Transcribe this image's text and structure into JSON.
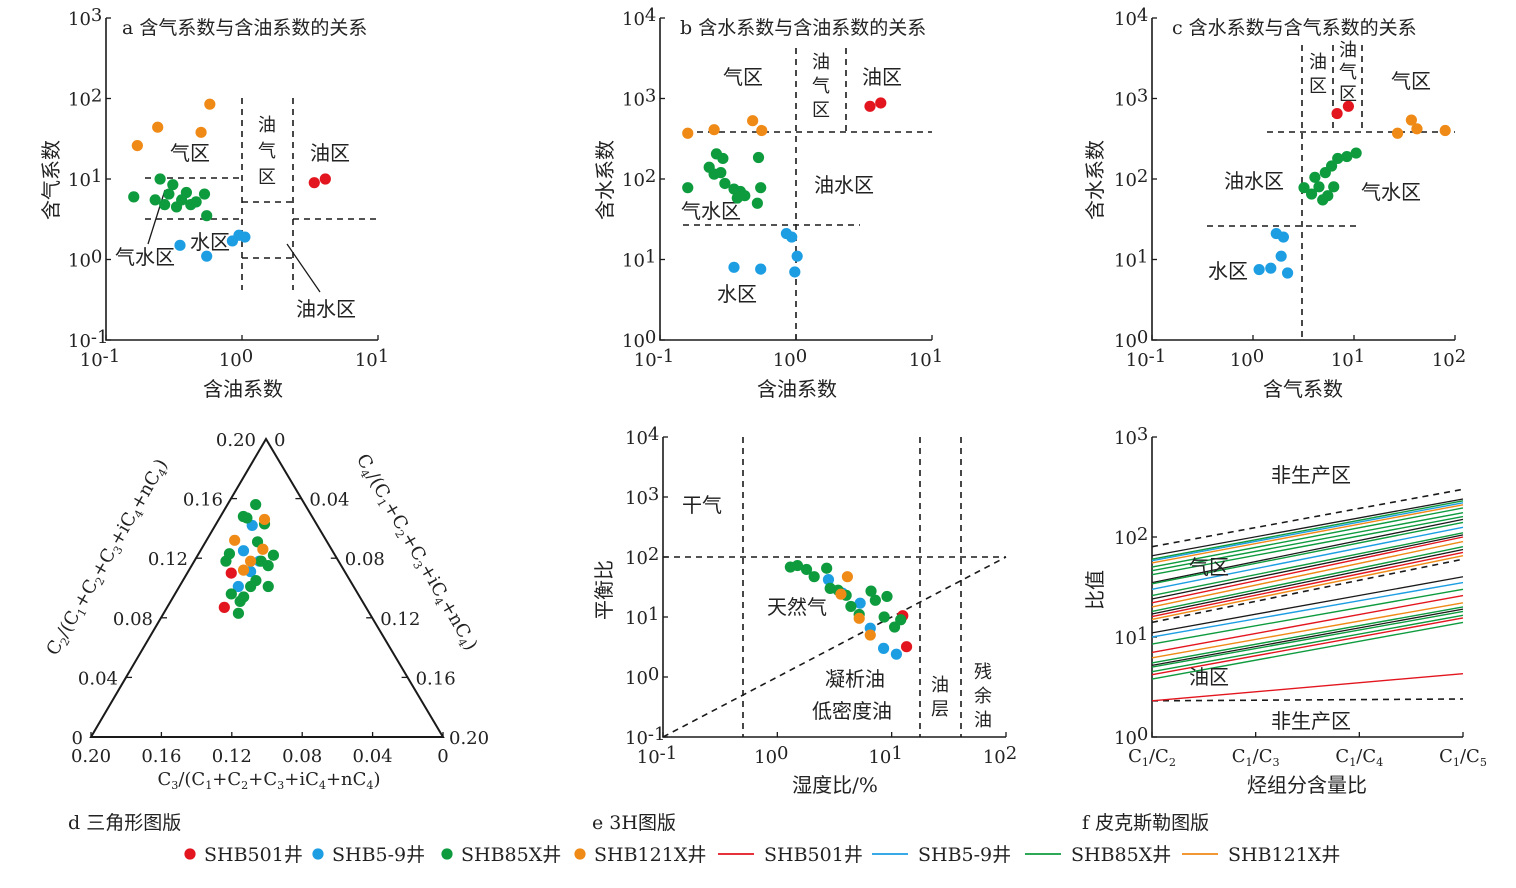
{
  "colors": {
    "SHB501": "#e3161f",
    "SHB5-9": "#1d9ee3",
    "SHB85X": "#0e9b3e",
    "SHB121X": "#ef8a17",
    "dark": "#1a1a1a"
  },
  "legend": [
    {
      "kind": "dot",
      "well": "SHB501",
      "label": "SHB501井"
    },
    {
      "kind": "dot",
      "well": "SHB5-9",
      "label": "SHB5-9井"
    },
    {
      "kind": "dot",
      "well": "SHB85X",
      "label": "SHB85X井"
    },
    {
      "kind": "dot",
      "well": "SHB121X",
      "label": "SHB121X井"
    },
    {
      "kind": "line",
      "well": "SHB501",
      "label": "SHB501井"
    },
    {
      "kind": "line",
      "well": "SHB5-9",
      "label": "SHB5-9井"
    },
    {
      "kind": "line",
      "well": "SHB85X",
      "label": "SHB85X井"
    },
    {
      "kind": "line",
      "well": "SHB121X",
      "label": "SHB121X井"
    }
  ],
  "captions": {
    "d": "d 三角形图版",
    "e": "e 3H图版",
    "f": "f 皮克斯勒图版"
  },
  "chart_data": [
    {
      "id": "a",
      "type": "scatter",
      "title": "a 含气系数与含油系数的关系",
      "xlabel": "含油系数",
      "ylabel": "含气系数",
      "xscale": "log",
      "yscale": "log",
      "xlim": [
        0.1,
        10
      ],
      "ylim": [
        0.1,
        1000
      ],
      "regions": [
        "气区",
        "油气区",
        "油区",
        "气水区",
        "水区",
        "油水区"
      ],
      "series": [
        {
          "well": "SHB501",
          "points": [
            [
              3.4,
              9
            ],
            [
              4.1,
              10
            ]
          ]
        },
        {
          "well": "SHB5-9",
          "points": [
            [
              0.35,
              1.5
            ],
            [
              0.55,
              1.1
            ],
            [
              0.85,
              1.7
            ],
            [
              0.95,
              2.0
            ],
            [
              1.05,
              1.9
            ]
          ]
        },
        {
          "well": "SHB85X",
          "points": [
            [
              0.16,
              6
            ],
            [
              0.23,
              5.5
            ],
            [
              0.25,
              10
            ],
            [
              0.27,
              4.8
            ],
            [
              0.29,
              6.5
            ],
            [
              0.31,
              8.5
            ],
            [
              0.33,
              4.5
            ],
            [
              0.36,
              5.5
            ],
            [
              0.39,
              6.8
            ],
            [
              0.42,
              4.8
            ],
            [
              0.46,
              5.2
            ],
            [
              0.53,
              6.5
            ],
            [
              0.55,
              3.5
            ]
          ]
        },
        {
          "well": "SHB121X",
          "points": [
            [
              0.17,
              26
            ],
            [
              0.24,
              44
            ],
            [
              0.5,
              38
            ],
            [
              0.58,
              85
            ]
          ]
        }
      ]
    },
    {
      "id": "b",
      "type": "scatter",
      "title": "b 含水系数与含油系数的关系",
      "xlabel": "含油系数",
      "ylabel": "含水系数",
      "xscale": "log",
      "yscale": "log",
      "xlim": [
        0.1,
        10
      ],
      "ylim": [
        1,
        10000
      ],
      "regions": [
        "气区",
        "油气区",
        "油区",
        "油水区",
        "气水区",
        "水区"
      ],
      "series": [
        {
          "well": "SHB501",
          "points": [
            [
              3.5,
              800
            ],
            [
              4.2,
              880
            ]
          ]
        },
        {
          "well": "SHB5-9",
          "points": [
            [
              0.35,
              8
            ],
            [
              0.55,
              7.6
            ],
            [
              0.85,
              21
            ],
            [
              0.93,
              19
            ],
            [
              0.98,
              7
            ],
            [
              1.02,
              11
            ]
          ]
        },
        {
          "well": "SHB85X",
          "points": [
            [
              0.16,
              78
            ],
            [
              0.23,
              140
            ],
            [
              0.25,
              115
            ],
            [
              0.26,
              205
            ],
            [
              0.28,
              120
            ],
            [
              0.29,
              180
            ],
            [
              0.3,
              88
            ],
            [
              0.35,
              75
            ],
            [
              0.37,
              58
            ],
            [
              0.39,
              70
            ],
            [
              0.42,
              62
            ],
            [
              0.52,
              50
            ],
            [
              0.53,
              185
            ],
            [
              0.55,
              78
            ]
          ]
        },
        {
          "well": "SHB121X",
          "points": [
            [
              0.16,
              370
            ],
            [
              0.25,
              410
            ],
            [
              0.48,
              530
            ],
            [
              0.56,
              400
            ]
          ]
        }
      ]
    },
    {
      "id": "c",
      "type": "scatter",
      "title": "c 含水系数与含气系数的关系",
      "xlabel": "含气系数",
      "ylabel": "含水系数",
      "xscale": "log",
      "yscale": "log",
      "xlim": [
        0.1,
        100
      ],
      "ylim": [
        1,
        10000
      ],
      "regions": [
        "油区",
        "油气区",
        "气区",
        "油水区",
        "气水区",
        "水区"
      ],
      "series": [
        {
          "well": "SHB501",
          "points": [
            [
              6.8,
              650
            ],
            [
              8.8,
              800
            ]
          ]
        },
        {
          "well": "SHB5-9",
          "points": [
            [
              1.15,
              7.5
            ],
            [
              1.5,
              7.8
            ],
            [
              1.7,
              21
            ],
            [
              1.9,
              11
            ],
            [
              2.0,
              19
            ],
            [
              2.2,
              6.8
            ]
          ]
        },
        {
          "well": "SHB85X",
          "points": [
            [
              3.2,
              78
            ],
            [
              3.8,
              65
            ],
            [
              4.1,
              105
            ],
            [
              4.5,
              80
            ],
            [
              4.9,
              55
            ],
            [
              5.2,
              120
            ],
            [
              5.5,
              62
            ],
            [
              6.0,
              145
            ],
            [
              6.3,
              80
            ],
            [
              6.9,
              180
            ],
            [
              8.5,
              190
            ],
            [
              10.5,
              210
            ]
          ]
        },
        {
          "well": "SHB121X",
          "points": [
            [
              27,
              370
            ],
            [
              37,
              540
            ],
            [
              42,
              420
            ],
            [
              80,
              400
            ]
          ]
        }
      ]
    },
    {
      "id": "d",
      "type": "scatter",
      "xlabel": "C3/(C1+C2+C3+iC4+nC4)",
      "ylabel": "C2/(C1+C2+C3+iC4+nC4)",
      "rlabel": "C4/(C1+C2+C3+iC4+nC4)",
      "range": [
        0,
        0.2
      ],
      "apex_ticks": [
        "0.20",
        "0"
      ],
      "bottom_ticks": [
        "0.20",
        "0.16",
        "0.12",
        "0.08",
        "0.04",
        "0"
      ],
      "left_ticks": [
        "0",
        "0.04",
        "0.08",
        "0.12",
        "0.16"
      ],
      "right_ticks": [
        "0.04",
        "0.08",
        "0.12",
        "0.16",
        "0.20"
      ],
      "series": [
        {
          "well": "SHB501",
          "points": [
            [
              0.12,
              0.11
            ],
            [
              0.124,
              0.087
            ]
          ]
        },
        {
          "well": "SHB5-9",
          "points": [
            [
              0.116,
              0.101
            ],
            [
              0.113,
              0.125
            ],
            [
              0.108,
              0.142
            ],
            [
              0.104,
              0.118
            ],
            [
              0.109,
              0.111
            ]
          ]
        },
        {
          "well": "SHB85X",
          "points": [
            [
              0.106,
              0.156
            ],
            [
              0.101,
              0.143
            ],
            [
              0.113,
              0.148
            ],
            [
              0.096,
              0.122
            ],
            [
              0.121,
              0.123
            ],
            [
              0.105,
              0.131
            ],
            [
              0.099,
              0.115
            ],
            [
              0.12,
              0.096
            ],
            [
              0.113,
              0.094
            ],
            [
              0.116,
              0.083
            ],
            [
              0.111,
              0.147
            ],
            [
              0.103,
              0.118
            ],
            [
              0.123,
              0.118
            ],
            [
              0.106,
              0.105
            ],
            [
              0.099,
              0.101
            ],
            [
              0.115,
              0.091
            ],
            [
              0.109,
              0.101
            ]
          ]
        },
        {
          "well": "SHB121X",
          "points": [
            [
              0.113,
              0.112
            ],
            [
              0.101,
              0.146
            ],
            [
              0.118,
              0.132
            ],
            [
              0.102,
              0.126
            ],
            [
              0.109,
              0.118
            ]
          ]
        }
      ]
    },
    {
      "id": "e",
      "type": "scatter",
      "xlabel": "湿度比/%",
      "ylabel": "平衡比",
      "xscale": "log",
      "yscale": "log",
      "xlim": [
        0.1,
        100
      ],
      "ylim": [
        0.1,
        10000
      ],
      "regions": [
        "干气",
        "天然气",
        "凝析油",
        "低密度油",
        "油层",
        "残余油"
      ],
      "series": [
        {
          "well": "SHB501",
          "points": [
            [
              12.5,
              10.5
            ],
            [
              13.5,
              3.2
            ]
          ]
        },
        {
          "well": "SHB5-9",
          "points": [
            [
              2.8,
              42
            ],
            [
              3.7,
              25
            ],
            [
              5.3,
              17
            ],
            [
              6.5,
              6.5
            ],
            [
              8.5,
              3
            ],
            [
              11,
              2.4
            ]
          ]
        },
        {
          "well": "SHB85X",
          "points": [
            [
              1.3,
              68
            ],
            [
              1.5,
              72
            ],
            [
              1.8,
              62
            ],
            [
              2.1,
              47
            ],
            [
              2.7,
              65
            ],
            [
              2.9,
              30
            ],
            [
              3.4,
              28
            ],
            [
              4.0,
              23
            ],
            [
              4.4,
              15
            ],
            [
              5.2,
              11
            ],
            [
              6.6,
              27
            ],
            [
              7.2,
              19
            ],
            [
              8.6,
              10
            ],
            [
              9.1,
              22
            ],
            [
              10.6,
              6.8
            ],
            [
              12,
              9
            ]
          ]
        },
        {
          "well": "SHB121X",
          "points": [
            [
              4.1,
              47
            ],
            [
              3.6,
              24
            ],
            [
              5.2,
              9.5
            ],
            [
              6.5,
              5
            ]
          ]
        }
      ]
    },
    {
      "id": "f",
      "type": "line",
      "xlabel": "烃组分含量比",
      "ylabel": "比值",
      "categories": [
        "C1/C2",
        "C1/C3",
        "C1/C4",
        "C1/C5"
      ],
      "yscale": "log",
      "ylim": [
        1,
        1000
      ],
      "regions": [
        "非生产区",
        "气区",
        "油区",
        "非生产区"
      ],
      "boundaries": [
        [
          80,
          300
        ],
        [
          14,
          60
        ],
        [
          2.3,
          2.4
        ]
      ],
      "series": [
        {
          "well": "SHB85X",
          "y0": 60,
          "y1": 230
        },
        {
          "well": "SHB5-9",
          "y0": 58,
          "y1": 220
        },
        {
          "well": "SHB121X",
          "y0": 55,
          "y1": 210
        },
        {
          "well": "SHB85X",
          "y0": 50,
          "y1": 195
        },
        {
          "well": "SHB85X",
          "y0": 46,
          "y1": 175
        },
        {
          "well": "SHB85X",
          "y0": 42,
          "y1": 160
        },
        {
          "well": "SHB85X",
          "y0": 34,
          "y1": 140
        },
        {
          "well": "SHB5-9",
          "y0": 30,
          "y1": 125
        },
        {
          "well": "SHB85X",
          "y0": 26,
          "y1": 110
        },
        {
          "well": "SHB501",
          "y0": 22,
          "y1": 100
        },
        {
          "well": "SHB121X",
          "y0": 20,
          "y1": 90
        },
        {
          "well": "SHB85X",
          "y0": 18,
          "y1": 80
        },
        {
          "well": "SHB501",
          "y0": 16,
          "y1": 70
        },
        {
          "well": "SHB121X",
          "y0": 15,
          "y1": 65
        },
        {
          "well": "SHB5-9",
          "y0": 10,
          "y1": 35
        },
        {
          "well": "SHB85X",
          "y0": 8.5,
          "y1": 30
        },
        {
          "well": "SHB501",
          "y0": 7,
          "y1": 26
        },
        {
          "well": "SHB121X",
          "y0": 6.2,
          "y1": 22
        },
        {
          "well": "SHB85X",
          "y0": 5.5,
          "y1": 20
        },
        {
          "well": "SHB85X",
          "y0": 5,
          "y1": 18
        },
        {
          "well": "SHB85X",
          "y0": 4.5,
          "y1": 16.5
        },
        {
          "well": "SHB501",
          "y0": 4.2,
          "y1": 15.5
        },
        {
          "well": "SHB85X",
          "y0": 3.8,
          "y1": 14
        },
        {
          "well": "SHB501",
          "y0": 2.3,
          "y1": 4.3
        }
      ],
      "dark_series": [
        {
          "y0": 65,
          "y1": 240
        },
        {
          "y0": 35,
          "y1": 150
        },
        {
          "y0": 24,
          "y1": 105
        },
        {
          "y0": 17,
          "y1": 75
        },
        {
          "y0": 11,
          "y1": 40
        },
        {
          "y0": 5.2,
          "y1": 19
        }
      ]
    }
  ]
}
